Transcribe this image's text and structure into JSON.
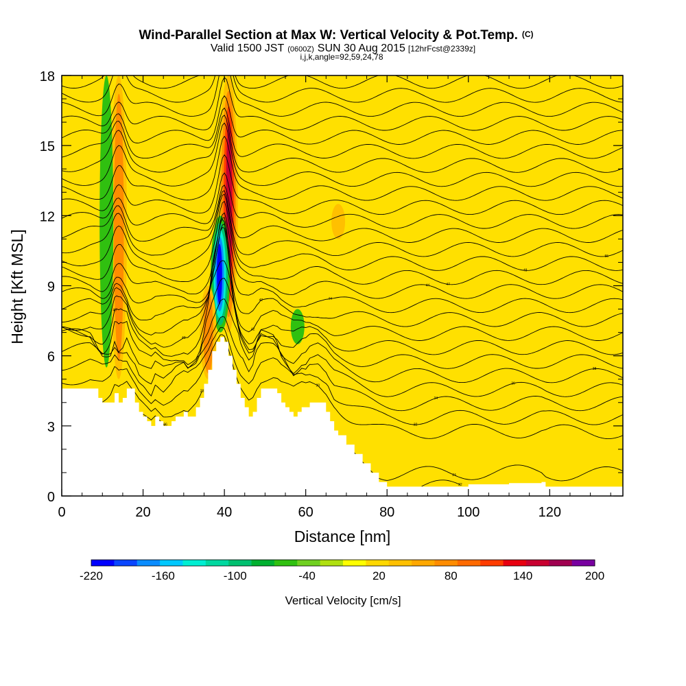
{
  "title": {
    "main": "Wind-Parallel Section at Max W: Vertical Velocity & Pot.Temp.",
    "main_unit": "(C)",
    "valid_a": "Valid 1500 JST",
    "valid_b": "(0600Z)",
    "valid_c": "SUN 30 Aug 2015",
    "valid_d": "[12hrFcst@2339z]",
    "indices": "i,j,k,angle=92,59,24,78"
  },
  "chart_data": {
    "type": "heatmap",
    "xlabel": "Distance [nm]",
    "ylabel": "Height [Kft MSL]",
    "xlim": [
      0,
      138
    ],
    "ylim": [
      0,
      18
    ],
    "x_ticks": [
      0,
      20,
      40,
      60,
      80,
      100,
      120
    ],
    "y_ticks": [
      0,
      3,
      6,
      9,
      12,
      15,
      18
    ],
    "background_value_cm_s": 20,
    "colorbar": {
      "label": "Vertical Velocity [cm/s]",
      "tick_labels": [
        "-220",
        "-160",
        "-100",
        "-40",
        "20",
        "80",
        "140",
        "200"
      ],
      "min": -220,
      "max": 200,
      "step": 20,
      "colors": [
        "#0000ff",
        "#0a46ff",
        "#0a8cff",
        "#00c8ff",
        "#00eed2",
        "#00d8a0",
        "#00c070",
        "#00b030",
        "#30c010",
        "#70d020",
        "#b0e010",
        "#ffff00",
        "#ffd800",
        "#ffc000",
        "#ffa800",
        "#ff8c00",
        "#ff6a00",
        "#ff3c00",
        "#e80010",
        "#c80030",
        "#a00050",
        "#7800a0"
      ]
    },
    "terrain_heights_kft": [
      [
        0,
        4.6
      ],
      [
        7,
        4.6
      ],
      [
        9,
        4.2
      ],
      [
        10,
        4.0
      ],
      [
        12,
        4.0
      ],
      [
        13,
        4.4
      ],
      [
        14,
        4.0
      ],
      [
        15,
        4.2
      ],
      [
        16,
        4.6
      ],
      [
        18,
        4.0
      ],
      [
        19,
        3.6
      ],
      [
        20,
        3.4
      ],
      [
        21,
        3.2
      ],
      [
        22,
        3.0
      ],
      [
        23,
        3.4
      ],
      [
        24,
        3.2
      ],
      [
        25,
        3.0
      ],
      [
        27,
        3.2
      ],
      [
        28,
        3.4
      ],
      [
        30,
        3.6
      ],
      [
        31,
        3.4
      ],
      [
        33,
        3.8
      ],
      [
        34,
        4.2
      ],
      [
        35,
        4.8
      ],
      [
        36,
        5.4
      ],
      [
        37,
        6.2
      ],
      [
        38,
        6.6
      ],
      [
        39,
        6.8
      ],
      [
        40,
        6.6
      ],
      [
        41,
        6.0
      ],
      [
        42,
        5.4
      ],
      [
        43,
        4.8
      ],
      [
        44,
        4.2
      ],
      [
        45,
        3.8
      ],
      [
        46,
        3.4
      ],
      [
        47,
        3.6
      ],
      [
        48,
        4.2
      ],
      [
        49,
        4.6
      ],
      [
        52,
        4.6
      ],
      [
        53,
        4.4
      ],
      [
        54,
        4.0
      ],
      [
        55,
        3.8
      ],
      [
        56,
        3.6
      ],
      [
        57,
        3.4
      ],
      [
        58,
        3.6
      ],
      [
        59,
        3.8
      ],
      [
        60,
        3.8
      ],
      [
        61,
        4.0
      ],
      [
        63,
        4.0
      ],
      [
        65,
        3.6
      ],
      [
        66,
        3.2
      ],
      [
        67,
        2.8
      ],
      [
        68,
        2.6
      ],
      [
        70,
        2.2
      ],
      [
        72,
        1.8
      ],
      [
        74,
        1.4
      ],
      [
        76,
        1.0
      ],
      [
        78,
        0.6
      ],
      [
        80,
        0.4
      ],
      [
        84,
        0.4
      ],
      [
        100,
        0.5
      ],
      [
        110,
        0.55
      ],
      [
        118,
        0.6
      ],
      [
        119,
        0.4
      ],
      [
        138,
        0.4
      ]
    ],
    "isentrope_labels": [
      "55",
      "48",
      "47",
      "44",
      "44",
      "42",
      "42",
      "40",
      "40",
      "38",
      "36",
      "34",
      "32",
      "30",
      "28",
      "26",
      "24",
      "22"
    ],
    "series": [
      {
        "name": "vertical_velocity_cm_s",
        "features": [
          {
            "x": 14,
            "y_range": [
              5,
              18
            ],
            "peak": 100
          },
          {
            "x": 11,
            "y_range": [
              5.5,
              18
            ],
            "peak": -60
          },
          {
            "x": 41,
            "y_range": [
              7,
              18
            ],
            "peak": 160
          },
          {
            "x": 39,
            "y_range": [
              7,
              12
            ],
            "peak": -220
          },
          {
            "x": 36,
            "y_range": [
              5,
              9
            ],
            "peak": 80
          },
          {
            "x": 58,
            "y_range": [
              6.5,
              8
            ],
            "peak": -40
          },
          {
            "x": 68,
            "y_range": [
              11,
              12.5
            ],
            "peak": 60
          }
        ]
      },
      {
        "name": "potential_temperature_C",
        "units": "C"
      }
    ]
  }
}
